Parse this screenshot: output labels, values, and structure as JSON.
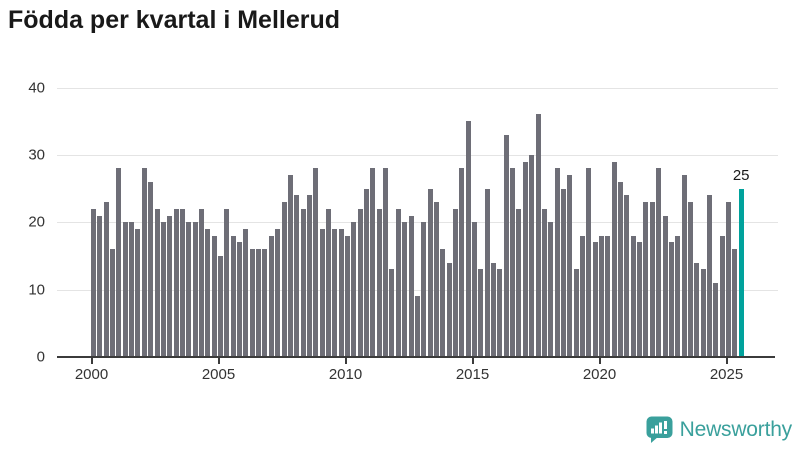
{
  "title": "Födda per kvartal i Mellerud",
  "branding": {
    "name": "Newsworthy",
    "icon": "bar-chart-speech-bubble"
  },
  "colors": {
    "bar": "#6e6e77",
    "highlight": "#00a29c",
    "grid": "#e4e4e4",
    "axis": "#3b3b3b",
    "title_text": "#191919",
    "tick_label_text": "#333333",
    "brand_teal": "#3aa09c"
  },
  "chart_data": {
    "type": "bar",
    "title": "Födda per kvartal i Mellerud",
    "xlabel": "",
    "ylabel": "",
    "x_start": {
      "year": 2000,
      "quarter": 1
    },
    "x_end": {
      "year": 2025,
      "quarter": 3
    },
    "x_tick_years": [
      2000,
      2005,
      2010,
      2015,
      2020,
      2025
    ],
    "y_ticks": [
      0,
      10,
      20,
      30,
      40
    ],
    "ylim": [
      0,
      40
    ],
    "grid": true,
    "legend": "none",
    "values": [
      22,
      21,
      23,
      16,
      28,
      20,
      20,
      19,
      28,
      26,
      22,
      20,
      21,
      22,
      22,
      20,
      20,
      22,
      19,
      18,
      15,
      22,
      18,
      17,
      19,
      16,
      16,
      16,
      18,
      19,
      23,
      27,
      24,
      22,
      24,
      28,
      19,
      22,
      19,
      19,
      18,
      20,
      22,
      25,
      28,
      22,
      28,
      13,
      22,
      20,
      21,
      9,
      20,
      25,
      23,
      16,
      14,
      22,
      28,
      35,
      20,
      13,
      25,
      14,
      13,
      33,
      28,
      22,
      29,
      30,
      36,
      22,
      20,
      28,
      25,
      27,
      13,
      18,
      28,
      17,
      18,
      18,
      29,
      26,
      24,
      18,
      17,
      23,
      23,
      28,
      21,
      17,
      18,
      27,
      23,
      14,
      13,
      24,
      11,
      18,
      23,
      16,
      25
    ],
    "highlight": {
      "index": 102,
      "value": 25,
      "label": "25"
    }
  }
}
